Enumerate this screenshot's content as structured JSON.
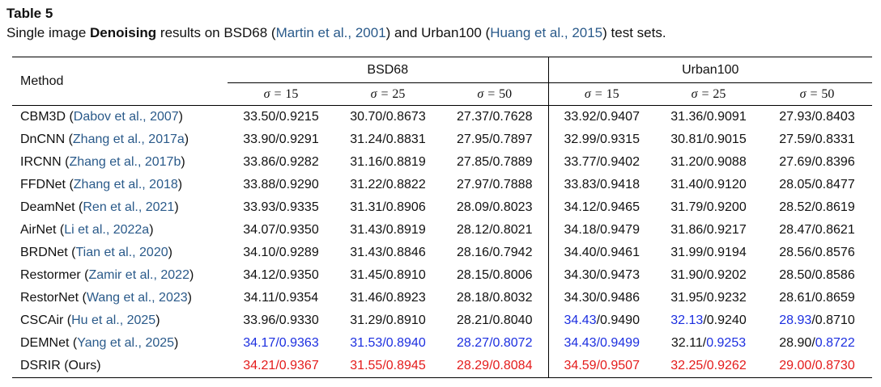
{
  "caption": {
    "label": "Table 5",
    "prefix": "Single image ",
    "bold": "Denoising",
    "middle": " results on BSD68 (",
    "cite1": "Martin et al., 2001",
    "middle2": ") and Urban100 (",
    "cite2": "Huang et al., 2015",
    "suffix": ") test sets."
  },
  "header": {
    "method": "Method",
    "group1": "BSD68",
    "group2": "Urban100",
    "sigma_prefix": "σ = ",
    "sigmas": [
      "15",
      "25",
      "50"
    ]
  },
  "rows": [
    {
      "name": "CBM3D",
      "cite": "Dabov et al., 2007",
      "vals": [
        {
          "a": "33.50",
          "b": "0.9215"
        },
        {
          "a": "30.70",
          "b": "0.8673"
        },
        {
          "a": "27.37",
          "b": "0.7628"
        },
        {
          "a": "33.92",
          "b": "0.9407"
        },
        {
          "a": "31.36",
          "b": "0.9091"
        },
        {
          "a": "27.93",
          "b": "0.8403"
        }
      ]
    },
    {
      "name": "DnCNN",
      "cite": "Zhang et al., 2017a",
      "vals": [
        {
          "a": "33.90",
          "b": "0.9291"
        },
        {
          "a": "31.24",
          "b": "0.8831"
        },
        {
          "a": "27.95",
          "b": "0.7897"
        },
        {
          "a": "32.99",
          "b": "0.9315"
        },
        {
          "a": "30.81",
          "b": "0.9015"
        },
        {
          "a": "27.59",
          "b": "0.8331"
        }
      ]
    },
    {
      "name": "IRCNN",
      "cite": "Zhang et al., 2017b",
      "vals": [
        {
          "a": "33.86",
          "b": "0.9282"
        },
        {
          "a": "31.16",
          "b": "0.8819"
        },
        {
          "a": "27.85",
          "b": "0.7889"
        },
        {
          "a": "33.77",
          "b": "0.9402"
        },
        {
          "a": "31.20",
          "b": "0.9088"
        },
        {
          "a": "27.69",
          "b": "0.8396"
        }
      ]
    },
    {
      "name": "FFDNet",
      "cite": "Zhang et al., 2018",
      "vals": [
        {
          "a": "33.88",
          "b": "0.9290"
        },
        {
          "a": "31.22",
          "b": "0.8822"
        },
        {
          "a": "27.97",
          "b": "0.7888"
        },
        {
          "a": "33.83",
          "b": "0.9418"
        },
        {
          "a": "31.40",
          "b": "0.9120"
        },
        {
          "a": "28.05",
          "b": "0.8477"
        }
      ]
    },
    {
      "name": "DeamNet",
      "cite": "Ren et al., 2021",
      "vals": [
        {
          "a": "33.93",
          "b": "0.9335"
        },
        {
          "a": "31.31",
          "b": "0.8906"
        },
        {
          "a": "28.09",
          "b": "0.8023"
        },
        {
          "a": "34.12",
          "b": "0.9465"
        },
        {
          "a": "31.79",
          "b": "0.9200"
        },
        {
          "a": "28.52",
          "b": "0.8619"
        }
      ]
    },
    {
      "name": "AirNet",
      "cite": "Li et al., 2022a",
      "vals": [
        {
          "a": "34.07",
          "b": "0.9350"
        },
        {
          "a": "31.43",
          "b": "0.8919"
        },
        {
          "a": "28.12",
          "b": "0.8021"
        },
        {
          "a": "34.18",
          "b": "0.9479"
        },
        {
          "a": "31.86",
          "b": "0.9217"
        },
        {
          "a": "28.47",
          "b": "0.8621"
        }
      ]
    },
    {
      "name": "BRDNet",
      "cite": "Tian et al., 2020",
      "vals": [
        {
          "a": "34.10",
          "b": "0.9289"
        },
        {
          "a": "31.43",
          "b": "0.8846"
        },
        {
          "a": "28.16",
          "b": "0.7942"
        },
        {
          "a": "34.40",
          "b": "0.9461"
        },
        {
          "a": "31.99",
          "b": "0.9194"
        },
        {
          "a": "28.56",
          "b": "0.8576"
        }
      ]
    },
    {
      "name": "Restormer",
      "cite": "Zamir et al., 2022",
      "vals": [
        {
          "a": "34.12",
          "b": "0.9350"
        },
        {
          "a": "31.45",
          "b": "0.8910"
        },
        {
          "a": "28.15",
          "b": "0.8006"
        },
        {
          "a": "34.30",
          "b": "0.9473"
        },
        {
          "a": "31.90",
          "b": "0.9202"
        },
        {
          "a": "28.50",
          "b": "0.8586"
        }
      ]
    },
    {
      "name": "RestorNet",
      "cite": "Wang et al., 2023",
      "vals": [
        {
          "a": "34.11",
          "b": "0.9354"
        },
        {
          "a": "31.46",
          "b": "0.8923"
        },
        {
          "a": "28.18",
          "b": "0.8032"
        },
        {
          "a": "34.30",
          "b": "0.9486"
        },
        {
          "a": "31.95",
          "b": "0.9232"
        },
        {
          "a": "28.61",
          "b": "0.8659"
        }
      ]
    },
    {
      "name": "CSCAir",
      "cite": "Hu et al., 2025",
      "vals": [
        {
          "a": "33.96",
          "b": "0.9330"
        },
        {
          "a": "31.29",
          "b": "0.8910"
        },
        {
          "a": "28.21",
          "b": "0.8040"
        },
        {
          "a": "34.43",
          "b": "0.9490",
          "ca": "blue"
        },
        {
          "a": "32.13",
          "b": "0.9240",
          "ca": "blue"
        },
        {
          "a": "28.93",
          "b": "0.8710",
          "ca": "blue"
        }
      ]
    },
    {
      "name": "DEMNet",
      "cite": "Yang et al., 2025",
      "vals": [
        {
          "a": "34.17",
          "b": "0.9363",
          "ca": "blue",
          "cb": "blue"
        },
        {
          "a": "31.53",
          "b": "0.8940",
          "ca": "blue",
          "cb": "blue"
        },
        {
          "a": "28.27",
          "b": "0.8072",
          "ca": "blue",
          "cb": "blue"
        },
        {
          "a": "34.43",
          "b": "0.9499",
          "ca": "blue",
          "cb": "blue"
        },
        {
          "a": "32.11",
          "b": "0.9253",
          "cb": "blue"
        },
        {
          "a": "28.90",
          "b": "0.8722",
          "cb": "blue"
        }
      ]
    },
    {
      "name": "DSRIR (Ours)",
      "cite": "",
      "vals": [
        {
          "a": "34.21",
          "b": "0.9367",
          "ca": "red",
          "cb": "red"
        },
        {
          "a": "31.55",
          "b": "0.8945",
          "ca": "red",
          "cb": "red"
        },
        {
          "a": "28.29",
          "b": "0.8084",
          "ca": "red",
          "cb": "red"
        },
        {
          "a": "34.59",
          "b": "0.9507",
          "ca": "red",
          "cb": "red"
        },
        {
          "a": "32.25",
          "b": "0.9262",
          "ca": "red",
          "cb": "red"
        },
        {
          "a": "29.00",
          "b": "0.8730",
          "ca": "red",
          "cb": "red"
        }
      ]
    }
  ],
  "colors": {
    "best": "#e41b1b",
    "second": "#1c2fe0",
    "citation": "#2a5a8a"
  }
}
